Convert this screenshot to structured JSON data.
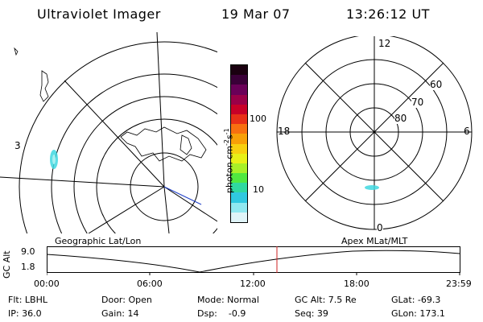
{
  "header": {
    "title": "Ultraviolet Imager",
    "date": "19 Mar 07",
    "time": "13:26:12 UT"
  },
  "geo_map": {
    "label": "Geographic Lat/Lon",
    "edge_label": "3"
  },
  "colorbar": {
    "unit_label": "photon cm",
    "unit_sup1": "-2",
    "unit_s": "s",
    "unit_sup2": "-1",
    "tick_high": "100",
    "tick_low": "10",
    "colors": [
      "#1a0010",
      "#3a0038",
      "#6a0058",
      "#9a0048",
      "#c80028",
      "#e83018",
      "#f87010",
      "#f8a008",
      "#f8d010",
      "#e8f018",
      "#a8f028",
      "#50e840",
      "#30d8a0",
      "#30c8e0",
      "#90e8f0",
      "#e0f4f8"
    ]
  },
  "polar": {
    "label": "Apex  MLat/MLT",
    "mlt_12": "12",
    "mlt_18": "18",
    "mlt_6": "6",
    "mlt_0": "0",
    "lat_60": "60",
    "lat_70": "70",
    "lat_80": "80"
  },
  "altitude_plot": {
    "ylabel": "GC Alt",
    "ytick_high": "9.0",
    "ytick_low": "1.8",
    "xticks": [
      "00:00",
      "06:00",
      "12:00",
      "18:00",
      "23:59"
    ],
    "marker_color": "#cc2020"
  },
  "info": {
    "flt": "Flt: LBHL",
    "ip": "IP: 36.0",
    "door": "Door: Open",
    "gain": "Gain: 14",
    "mode": "Mode: Normal",
    "dsp": "Dsp:    -0.9",
    "gc_alt": "GC Alt: 7.5 Re",
    "seq": "Seq: 39",
    "glat": "GLat: -69.3",
    "glon": "GLon: 173.1"
  }
}
